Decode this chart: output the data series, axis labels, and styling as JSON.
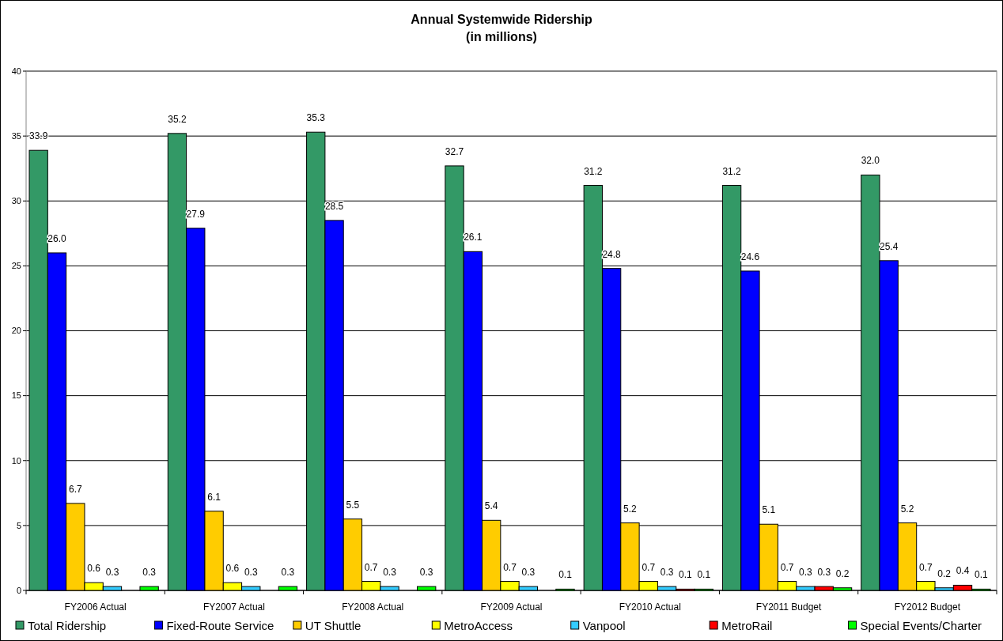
{
  "chart_data": {
    "type": "bar",
    "title": "Annual Systemwide Ridership",
    "subtitle": "(in millions)",
    "categories": [
      "FY2006 Actual",
      "FY2007 Actual",
      "FY2008 Actual",
      "FY2009 Actual",
      "FY2010 Actual",
      "FY2011 Budget",
      "FY2012 Budget"
    ],
    "ylim": [
      0,
      40
    ],
    "yticks": [
      0,
      5,
      10,
      15,
      20,
      25,
      30,
      35,
      40
    ],
    "grid": "y",
    "legend": "bottom",
    "series": [
      {
        "name": "Total Ridership",
        "color": "#339966",
        "values": [
          33.9,
          35.2,
          35.3,
          32.7,
          31.2,
          31.2,
          32.0
        ],
        "value_labels": [
          "33.9",
          "35.2",
          "35.3",
          "32.7",
          "31.2",
          "31.2",
          "32.0"
        ]
      },
      {
        "name": "Fixed-Route Service",
        "color": "#0000ff",
        "values": [
          26.0,
          27.9,
          28.5,
          26.1,
          24.8,
          24.6,
          25.4
        ],
        "value_labels": [
          "26.0",
          "27.9",
          "28.5",
          "26.1",
          "24.8",
          "24.6",
          "25.4"
        ]
      },
      {
        "name": "UT Shuttle",
        "color": "#ffcc00",
        "values": [
          6.7,
          6.1,
          5.5,
          5.4,
          5.2,
          5.1,
          5.2
        ],
        "value_labels": [
          "6.7",
          "6.1",
          "5.5",
          "5.4",
          "5.2",
          "5.1",
          "5.2"
        ]
      },
      {
        "name": "MetroAccess",
        "color": "#ffff00",
        "values": [
          0.6,
          0.6,
          0.7,
          0.7,
          0.7,
          0.7,
          0.7
        ],
        "value_labels": [
          "0.6",
          "0.6",
          "0.7",
          "0.7",
          "0.7",
          "0.7",
          "0.7"
        ]
      },
      {
        "name": "Vanpool",
        "color": "#33ccff",
        "values": [
          0.3,
          0.3,
          0.3,
          0.3,
          0.3,
          0.3,
          0.2
        ],
        "value_labels": [
          "0.3",
          "0.3",
          "0.3",
          "0.3",
          "0.3",
          "0.3",
          "0.2"
        ]
      },
      {
        "name": "MetroRail",
        "color": "#ff0000",
        "values": [
          null,
          null,
          null,
          null,
          0.1,
          0.3,
          0.4
        ],
        "value_labels": [
          null,
          null,
          null,
          null,
          "0.1",
          "0.3",
          "0.4"
        ]
      },
      {
        "name": "Special Events/Charter",
        "color": "#00ff00",
        "values": [
          0.3,
          0.3,
          0.3,
          0.1,
          0.1,
          0.2,
          0.1
        ],
        "value_labels": [
          "0.3",
          "0.3",
          "0.3",
          "0.1",
          "0.1",
          "0.2",
          "0.1"
        ]
      }
    ]
  }
}
